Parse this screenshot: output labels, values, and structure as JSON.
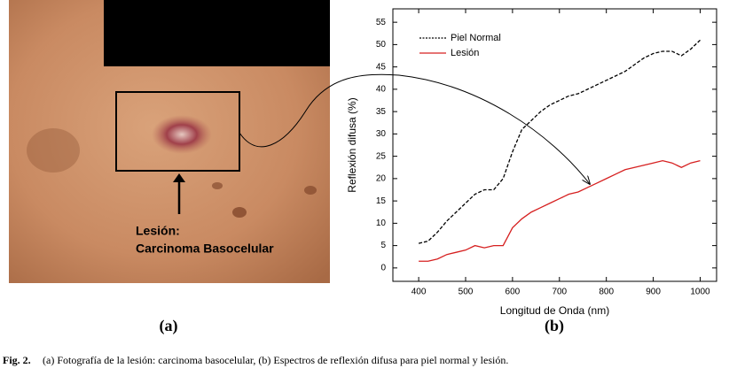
{
  "figure": {
    "photo_label_line1": "Lesión:",
    "photo_label_line2": "Carcinoma Basocelular",
    "panel_a": "(a)",
    "panel_b": "(b)",
    "caption_label": "Fig. 2.",
    "caption_text": "(a) Fotografía de la lesión: carcinoma basocelular, (b) Espectros de reflexión difusa para piel normal y lesión."
  },
  "chart_data": {
    "type": "line",
    "x_label": "Longitud de Onda (nm)",
    "y_label": "Reflexión difusa (%)",
    "x": [
      400,
      420,
      440,
      460,
      480,
      500,
      520,
      540,
      560,
      580,
      600,
      620,
      640,
      660,
      680,
      700,
      720,
      740,
      760,
      780,
      800,
      820,
      840,
      860,
      880,
      900,
      920,
      940,
      960,
      980,
      1000
    ],
    "series": [
      {
        "name": "Piel Normal",
        "color": "#000000",
        "style": "dashed",
        "values": [
          5.5,
          6,
          8,
          10.5,
          12.5,
          14.5,
          16.5,
          17.5,
          17.5,
          20,
          26,
          31,
          33,
          35,
          36.5,
          37.5,
          38.5,
          39,
          40,
          41,
          42,
          43,
          44,
          45.5,
          47,
          48,
          48.5,
          48.5,
          47.5,
          49,
          51
        ]
      },
      {
        "name": "Lesión",
        "color": "#d62020",
        "style": "solid",
        "values": [
          1.5,
          1.5,
          2,
          3,
          3.5,
          4,
          5,
          4.5,
          5,
          5,
          9,
          11,
          12.5,
          13.5,
          14.5,
          15.5,
          16.5,
          17,
          18,
          19,
          20,
          21,
          22,
          22.5,
          23,
          23.5,
          24,
          23.5,
          22.5,
          23.5,
          24
        ]
      }
    ],
    "xlim": [
      345,
      1035
    ],
    "xticks": [
      400,
      500,
      600,
      700,
      800,
      900,
      1000
    ],
    "ylim": [
      -3,
      58
    ],
    "yticks": [
      0,
      5,
      10,
      15,
      20,
      25,
      30,
      35,
      40,
      45,
      50,
      55
    ],
    "legend": "upper left",
    "grid": false
  }
}
